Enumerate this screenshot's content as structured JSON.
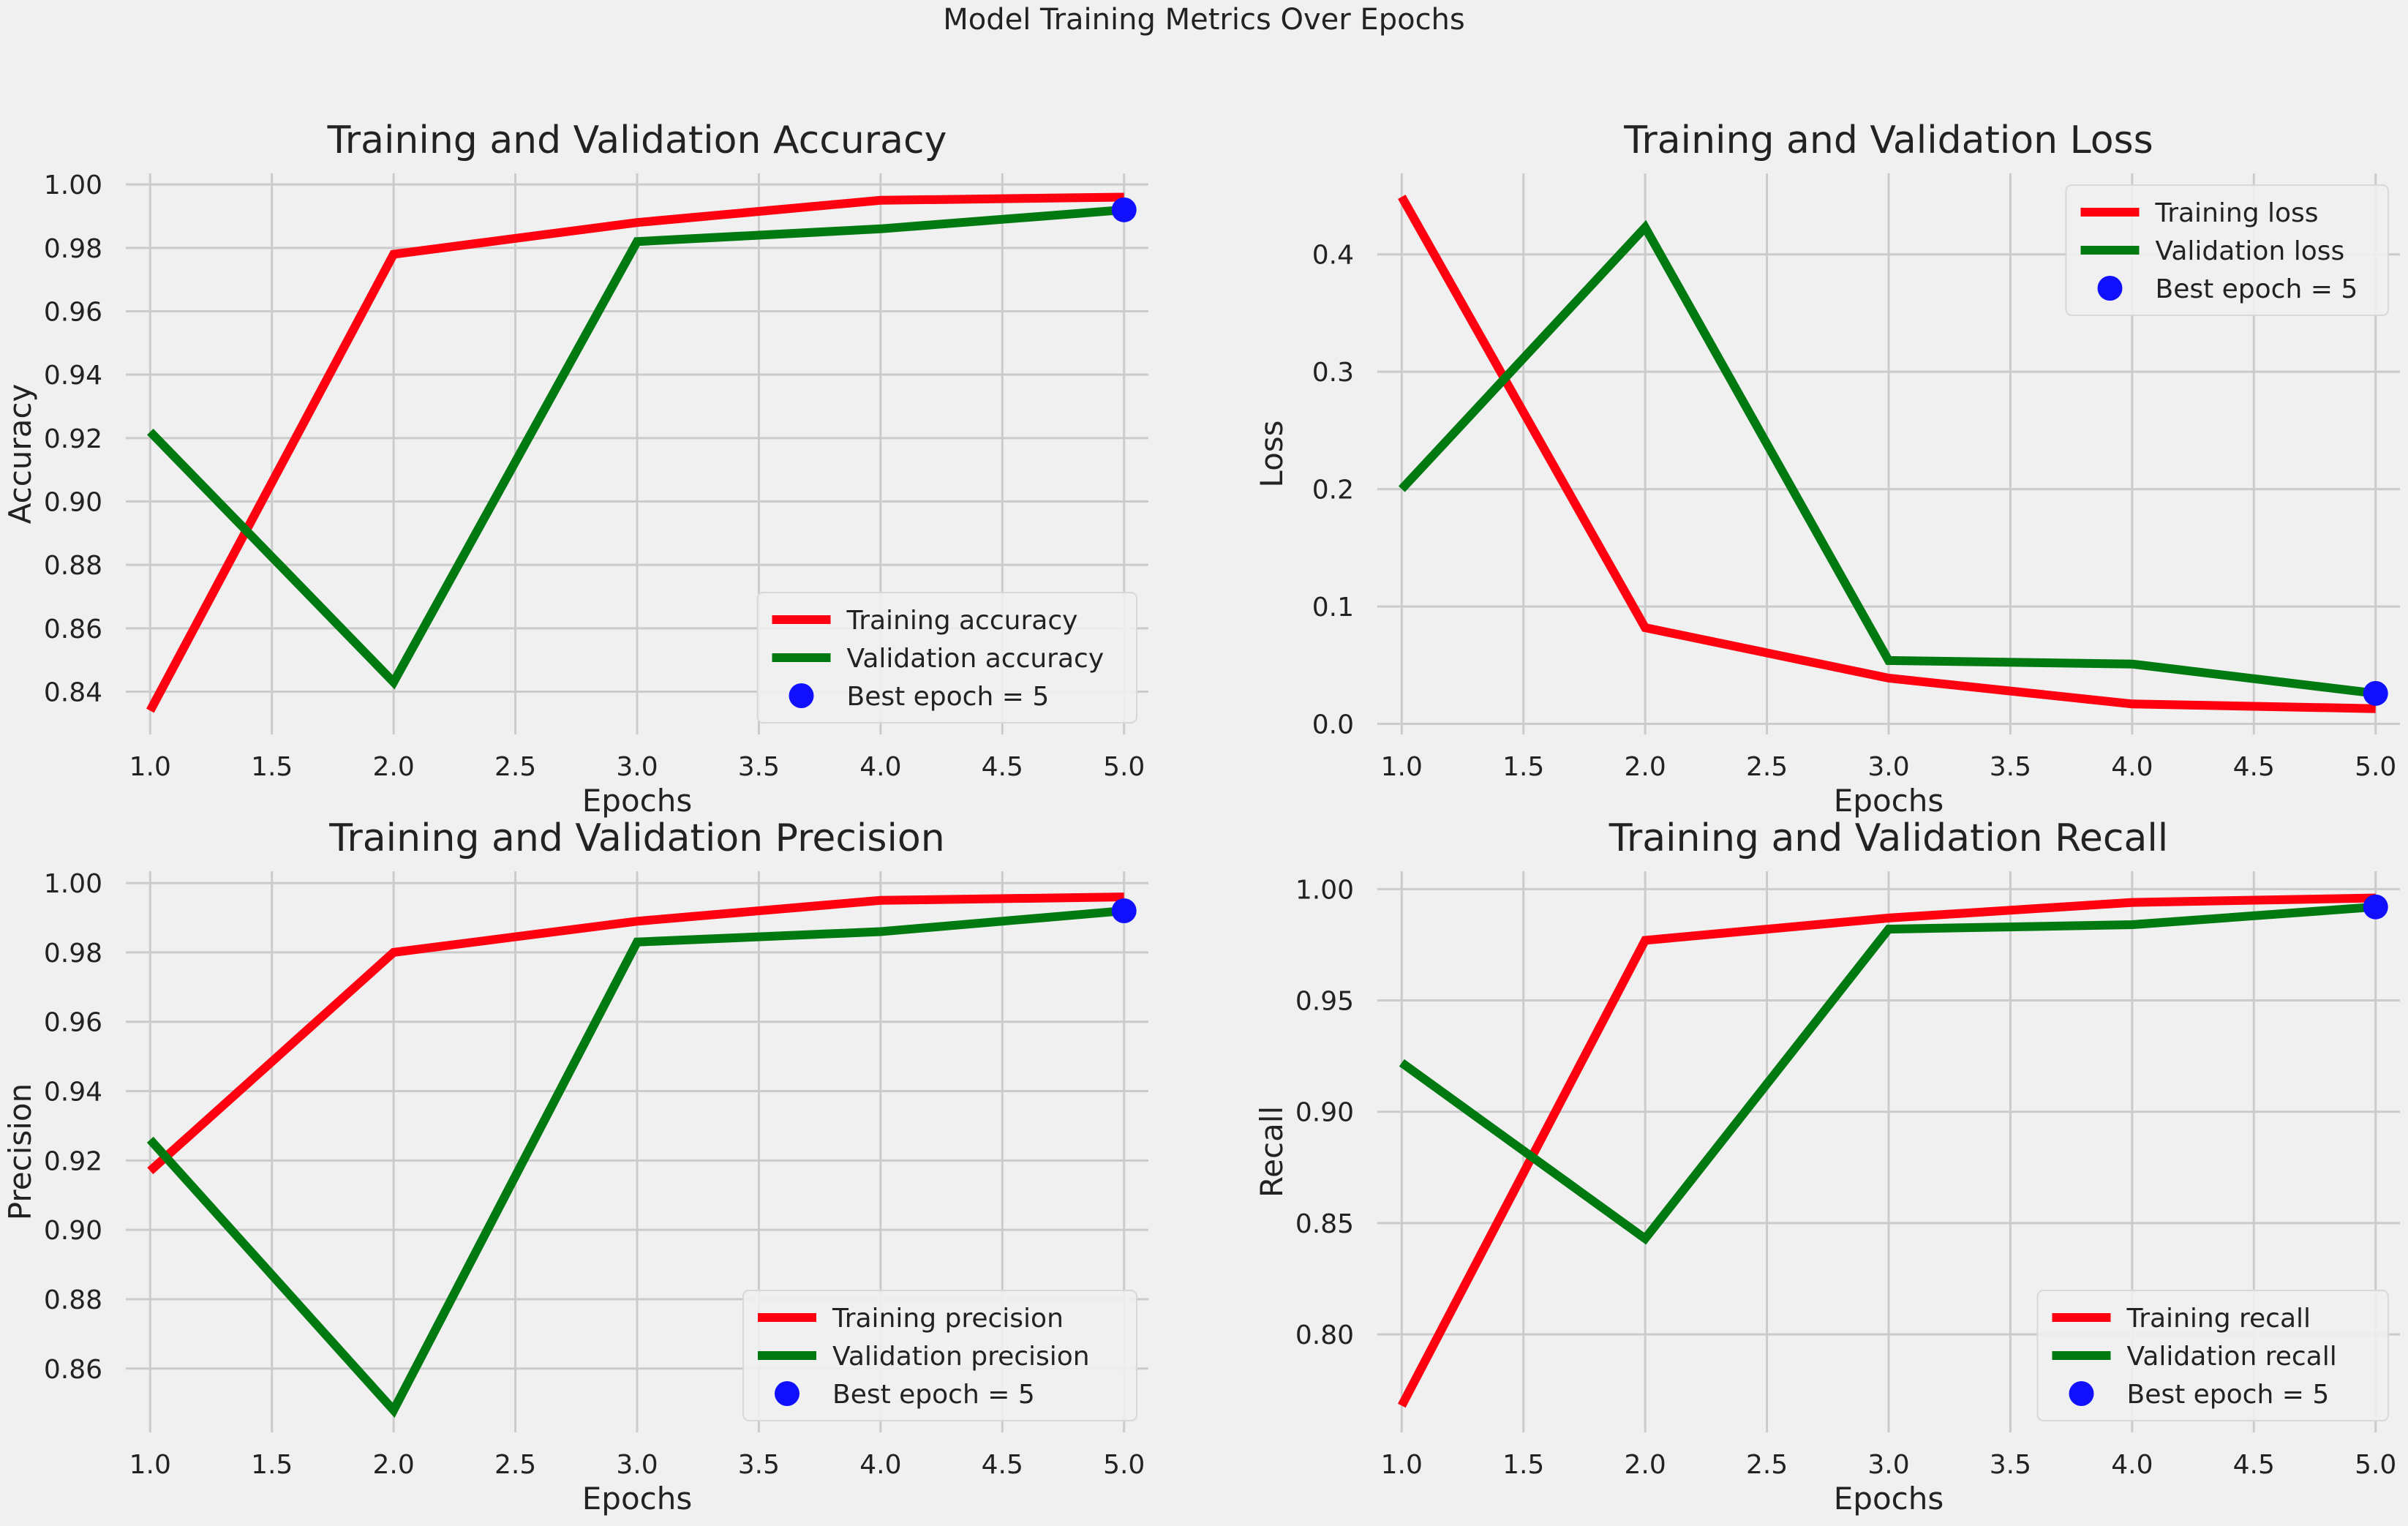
{
  "figure": {
    "title": "Model Training Metrics Over Epochs"
  },
  "colors": {
    "training": "#ff0010",
    "validation": "#007a10",
    "best": "#1010ff",
    "grid": "#cbcbcb",
    "background": "#f0f0f0"
  },
  "chart_data": [
    {
      "type": "line",
      "title": "Training and Validation Accuracy",
      "xlabel": "Epochs",
      "ylabel": "Accuracy",
      "x": [
        1,
        2,
        3,
        4,
        5
      ],
      "xticks": [
        1.0,
        1.5,
        2.0,
        2.5,
        3.0,
        3.5,
        4.0,
        4.5,
        5.0
      ],
      "yticks": [
        0.84,
        0.86,
        0.88,
        0.9,
        0.92,
        0.94,
        0.96,
        0.98,
        1.0
      ],
      "ytick_decimals": 2,
      "xlim": [
        0.9,
        5.1
      ],
      "ylim": [
        0.8265,
        1.0035
      ],
      "grid": true,
      "legend_position": "lower-right",
      "series": [
        {
          "name": "Training accuracy",
          "values": [
            0.834,
            0.978,
            0.988,
            0.995,
            0.996
          ]
        },
        {
          "name": "Validation accuracy",
          "values": [
            0.922,
            0.843,
            0.982,
            0.986,
            0.992
          ]
        }
      ],
      "best": {
        "label": "Best epoch = 5",
        "x": 5,
        "y": 0.992
      }
    },
    {
      "type": "line",
      "title": "Training and Validation Loss",
      "xlabel": "Epochs",
      "ylabel": "Loss",
      "x": [
        1,
        2,
        3,
        4,
        5
      ],
      "xticks": [
        1.0,
        1.5,
        2.0,
        2.5,
        3.0,
        3.5,
        4.0,
        4.5,
        5.0
      ],
      "yticks": [
        0.0,
        0.1,
        0.2,
        0.3,
        0.4
      ],
      "ytick_decimals": 1,
      "xlim": [
        0.9,
        5.1
      ],
      "ylim": [
        -0.009,
        0.469
      ],
      "grid": true,
      "legend_position": "upper-right",
      "series": [
        {
          "name": "Training loss",
          "values": [
            0.449,
            0.082,
            0.039,
            0.017,
            0.013
          ]
        },
        {
          "name": "Validation loss",
          "values": [
            0.2,
            0.423,
            0.054,
            0.051,
            0.026
          ]
        }
      ],
      "best": {
        "label": "Best epoch = 5",
        "x": 5,
        "y": 0.026
      }
    },
    {
      "type": "line",
      "title": "Training and Validation Precision",
      "xlabel": "Epochs",
      "ylabel": "Precision",
      "x": [
        1,
        2,
        3,
        4,
        5
      ],
      "xticks": [
        1.0,
        1.5,
        2.0,
        2.5,
        3.0,
        3.5,
        4.0,
        4.5,
        5.0
      ],
      "yticks": [
        0.86,
        0.88,
        0.9,
        0.92,
        0.94,
        0.96,
        0.98,
        1.0
      ],
      "ytick_decimals": 2,
      "xlim": [
        0.9,
        5.1
      ],
      "ylim": [
        0.8416,
        1.0034
      ],
      "grid": true,
      "legend_position": "lower-right",
      "series": [
        {
          "name": "Training precision",
          "values": [
            0.917,
            0.98,
            0.989,
            0.995,
            0.996
          ]
        },
        {
          "name": "Validation precision",
          "values": [
            0.926,
            0.848,
            0.983,
            0.986,
            0.992
          ]
        }
      ],
      "best": {
        "label": "Best epoch = 5",
        "x": 5,
        "y": 0.992
      }
    },
    {
      "type": "line",
      "title": "Training and Validation Recall",
      "xlabel": "Epochs",
      "ylabel": "Recall",
      "x": [
        1,
        2,
        3,
        4,
        5
      ],
      "xticks": [
        1.0,
        1.5,
        2.0,
        2.5,
        3.0,
        3.5,
        4.0,
        4.5,
        5.0
      ],
      "yticks": [
        0.8,
        0.85,
        0.9,
        0.95,
        1.0
      ],
      "ytick_decimals": 2,
      "xlim": [
        0.9,
        5.1
      ],
      "ylim": [
        0.756,
        1.008
      ],
      "grid": true,
      "legend_position": "lower-right",
      "series": [
        {
          "name": "Training recall",
          "values": [
            0.768,
            0.977,
            0.987,
            0.994,
            0.996
          ]
        },
        {
          "name": "Validation recall",
          "values": [
            0.922,
            0.843,
            0.982,
            0.984,
            0.992
          ]
        }
      ],
      "best": {
        "label": "Best epoch = 5",
        "x": 5,
        "y": 0.992
      }
    }
  ]
}
